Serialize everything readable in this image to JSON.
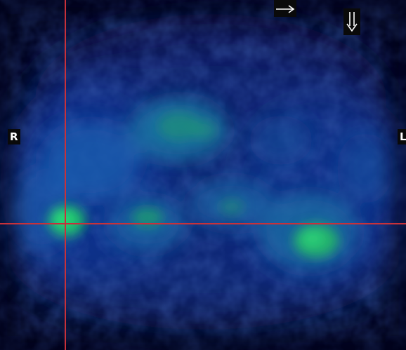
{
  "viewer": {
    "orientation": {
      "right_label": "R",
      "left_label": "L"
    },
    "icons": {
      "right_arrow": "arrow-right-icon",
      "down_arrow": "double-arrow-down-icon"
    },
    "colors": {
      "crosshair": "#c8313a",
      "background": "#01031a",
      "signal_low": "#0b2a7a",
      "signal_high": "#22d06a"
    }
  }
}
